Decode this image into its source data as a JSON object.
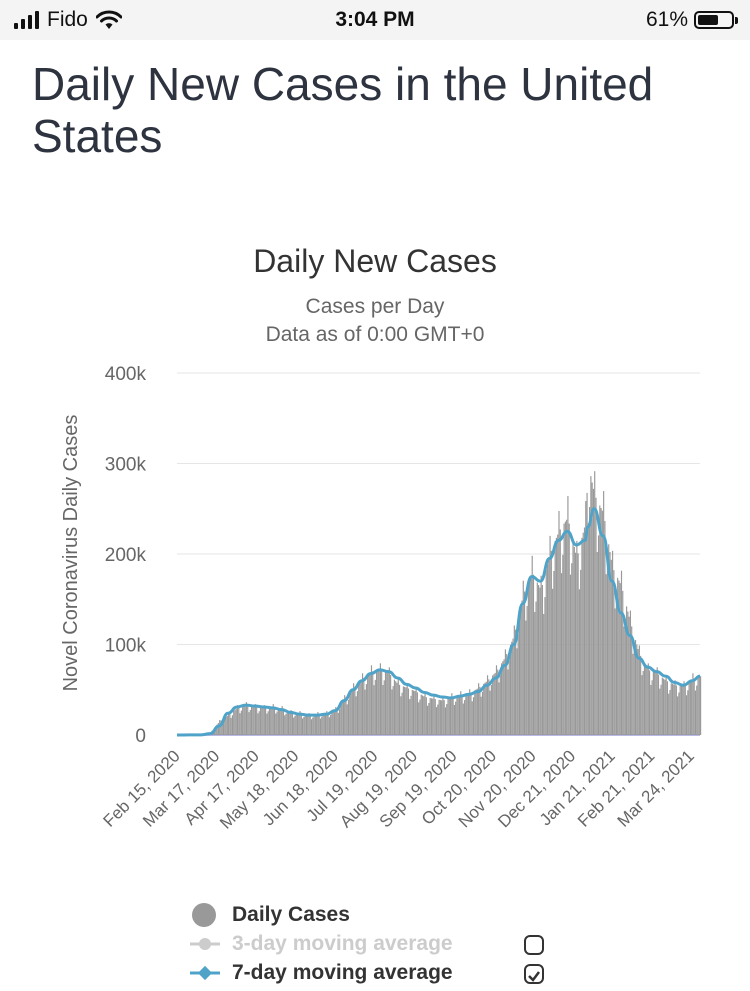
{
  "status_bar": {
    "carrier": "Fido",
    "time": "3:04 PM",
    "battery_percent": "61%",
    "battery_level": 0.61
  },
  "page": {
    "title": "Daily New Cases in the United States"
  },
  "chart_data": {
    "type": "bar",
    "title": "Daily New Cases",
    "subtitle_lines": [
      "Cases per Day",
      "Data as of 0:00 GMT+0"
    ],
    "ylabel": "Novel Coronavirus Daily Cases",
    "xlabel": "",
    "ylim": [
      0,
      400000
    ],
    "yticks": [
      0,
      100000,
      200000,
      300000,
      400000
    ],
    "ytick_labels": [
      "0",
      "100k",
      "200k",
      "300k",
      "400k"
    ],
    "x_range": [
      "2020-02-15",
      "2021-03-31"
    ],
    "xtick_dates": [
      "2020-02-15",
      "2020-03-17",
      "2020-04-17",
      "2020-05-18",
      "2020-06-18",
      "2020-07-19",
      "2020-08-19",
      "2020-09-19",
      "2020-10-20",
      "2020-11-20",
      "2020-12-21",
      "2021-01-21",
      "2021-02-21",
      "2021-03-24"
    ],
    "xtick_labels": [
      "Feb 15, 2020",
      "Mar 17, 2020",
      "Apr 17, 2020",
      "May 18, 2020",
      "Jun 18, 2020",
      "Jul 19, 2020",
      "Aug 19, 2020",
      "Sep 19, 2020",
      "Oct 20, 2020",
      "Nov 20, 2020",
      "Dec 21, 2020",
      "Jan 21, 2021",
      "Feb 21, 2021",
      "Mar 24, 2021"
    ],
    "grid": true,
    "legend_position": "bottom",
    "series": [
      {
        "name": "Daily Cases",
        "type": "bar",
        "color": "#999999",
        "x": [
          "2020-02-15",
          "2020-03-05",
          "2020-03-12",
          "2020-03-19",
          "2020-03-26",
          "2020-04-02",
          "2020-04-09",
          "2020-04-16",
          "2020-04-23",
          "2020-04-30",
          "2020-05-07",
          "2020-05-14",
          "2020-05-21",
          "2020-05-28",
          "2020-06-04",
          "2020-06-11",
          "2020-06-18",
          "2020-06-25",
          "2020-07-02",
          "2020-07-09",
          "2020-07-16",
          "2020-07-23",
          "2020-07-30",
          "2020-08-06",
          "2020-08-13",
          "2020-08-20",
          "2020-08-27",
          "2020-09-03",
          "2020-09-10",
          "2020-09-17",
          "2020-09-24",
          "2020-10-01",
          "2020-10-08",
          "2020-10-15",
          "2020-10-22",
          "2020-10-29",
          "2020-11-05",
          "2020-11-12",
          "2020-11-19",
          "2020-11-26",
          "2020-12-03",
          "2020-12-10",
          "2020-12-17",
          "2020-12-24",
          "2020-12-31",
          "2021-01-02",
          "2021-01-07",
          "2021-01-14",
          "2021-01-21",
          "2021-01-28",
          "2021-02-04",
          "2021-02-11",
          "2021-02-18",
          "2021-02-25",
          "2021-03-04",
          "2021-03-11",
          "2021-03-18",
          "2021-03-25",
          "2021-03-31"
        ],
        "values": [
          0,
          300,
          3000,
          15000,
          22000,
          30000,
          33000,
          31000,
          30000,
          31000,
          29000,
          25000,
          24000,
          22000,
          23000,
          24000,
          28000,
          40000,
          52000,
          62000,
          70000,
          72000,
          68000,
          56000,
          52000,
          48000,
          42000,
          40000,
          38000,
          42000,
          44000,
          46000,
          52000,
          60000,
          70000,
          86000,
          110000,
          155000,
          180000,
          160000,
          200000,
          225000,
          240000,
          195000,
          235000,
          300000,
          265000,
          245000,
          185000,
          165000,
          125000,
          90000,
          72000,
          68000,
          60000,
          55000,
          54000,
          62000,
          65000
        ]
      },
      {
        "name": "3-day moving average",
        "type": "line",
        "color": "#cccccc",
        "visible": false
      },
      {
        "name": "7-day moving average",
        "type": "line",
        "color": "#4fa3c9",
        "visible": true,
        "x": [
          "2020-02-15",
          "2020-03-05",
          "2020-03-12",
          "2020-03-19",
          "2020-03-26",
          "2020-04-02",
          "2020-04-09",
          "2020-04-16",
          "2020-04-23",
          "2020-04-30",
          "2020-05-07",
          "2020-05-14",
          "2020-05-21",
          "2020-05-28",
          "2020-06-04",
          "2020-06-11",
          "2020-06-18",
          "2020-06-25",
          "2020-07-02",
          "2020-07-09",
          "2020-07-16",
          "2020-07-23",
          "2020-07-30",
          "2020-08-06",
          "2020-08-13",
          "2020-08-20",
          "2020-08-27",
          "2020-09-03",
          "2020-09-10",
          "2020-09-17",
          "2020-09-24",
          "2020-10-01",
          "2020-10-08",
          "2020-10-15",
          "2020-10-22",
          "2020-10-29",
          "2020-11-05",
          "2020-11-12",
          "2020-11-19",
          "2020-11-26",
          "2020-12-03",
          "2020-12-10",
          "2020-12-17",
          "2020-12-24",
          "2020-12-31",
          "2021-01-02",
          "2021-01-07",
          "2021-01-14",
          "2021-01-21",
          "2021-01-28",
          "2021-02-04",
          "2021-02-11",
          "2021-02-18",
          "2021-02-25",
          "2021-03-04",
          "2021-03-11",
          "2021-03-18",
          "2021-03-25",
          "2021-03-31"
        ],
        "values": [
          0,
          200,
          1500,
          10000,
          24000,
          31000,
          33000,
          32000,
          31000,
          30000,
          28000,
          25000,
          23000,
          22000,
          22000,
          23000,
          27000,
          38000,
          50000,
          60000,
          68000,
          72000,
          70000,
          63000,
          56000,
          52000,
          47000,
          44000,
          42000,
          41000,
          43000,
          45000,
          48000,
          55000,
          63000,
          77000,
          100000,
          145000,
          175000,
          170000,
          195000,
          215000,
          225000,
          210000,
          215000,
          230000,
          250000,
          220000,
          170000,
          135000,
          110000,
          85000,
          75000,
          70000,
          65000,
          58000,
          55000,
          60000,
          65000
        ]
      }
    ],
    "legend": [
      {
        "name": "Daily Cases",
        "checkbox": false
      },
      {
        "name": "3-day moving average",
        "checkbox": true,
        "checked": false
      },
      {
        "name": "7-day moving average",
        "checkbox": true,
        "checked": true
      }
    ]
  }
}
